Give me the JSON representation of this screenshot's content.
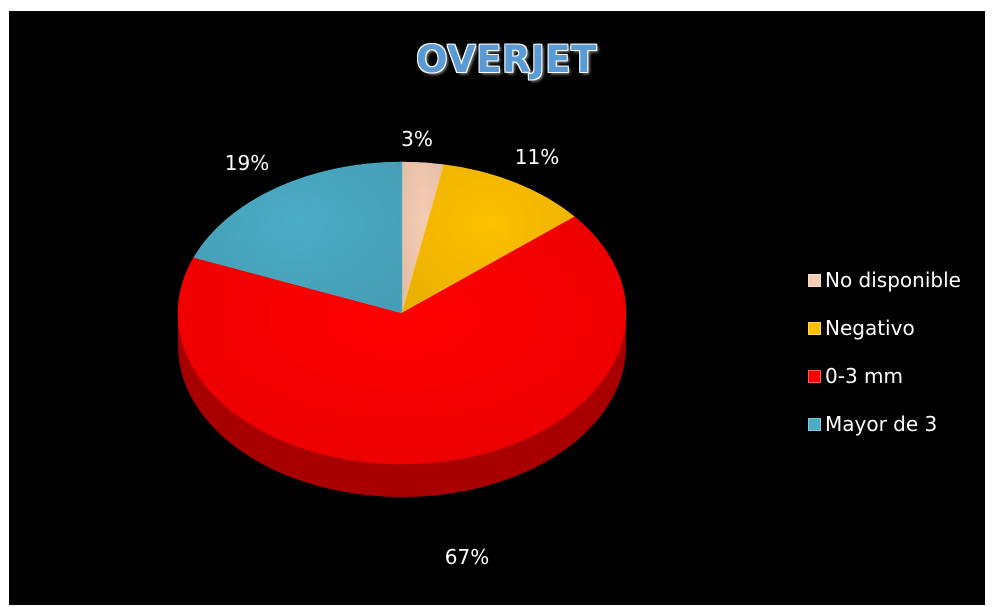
{
  "chart_data": {
    "type": "pie",
    "style": "3d",
    "title": "OVERJET",
    "categories": [
      "No disponible",
      "Negativo",
      "0-3 mm",
      "Mayor de 3"
    ],
    "values": [
      3,
      11,
      67,
      19
    ],
    "labels": [
      "3%",
      "11%",
      "67%",
      "19%"
    ],
    "colors": [
      "#f6cdb3",
      "#ffc000",
      "#ff0000",
      "#4bacc6"
    ],
    "side_colors": [
      "#c9a18a",
      "#b38600",
      "#a80000",
      "#2f7a8e"
    ],
    "legend_position": "right"
  }
}
